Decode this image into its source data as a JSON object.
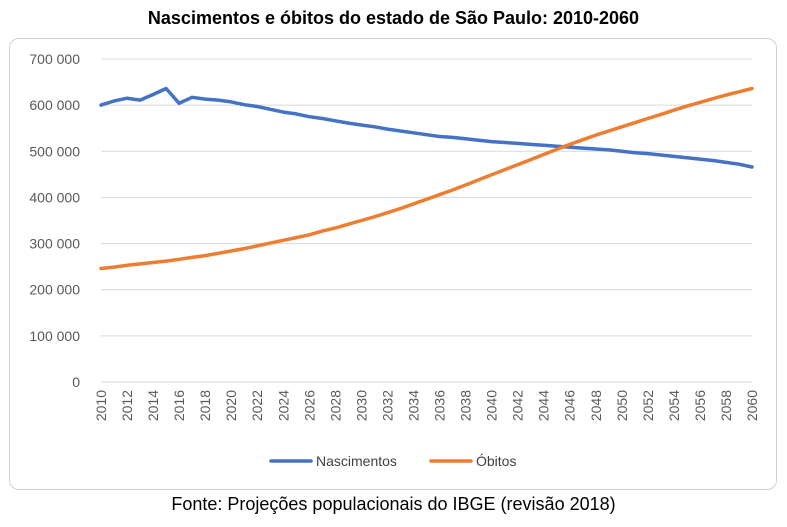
{
  "chart_data": {
    "type": "line",
    "title": "Nascimentos e óbitos do estado de São Paulo: 2010-2060",
    "source_note": "Fonte: Projeções populacionais do IBGE (revisão 2018)",
    "xlabel": "",
    "ylabel": "",
    "ylim": [
      0,
      700000
    ],
    "yticks": [
      0,
      100000,
      200000,
      300000,
      400000,
      500000,
      600000,
      700000
    ],
    "ytick_labels": [
      "0",
      "100 000",
      "200 000",
      "300 000",
      "400 000",
      "500 000",
      "600 000",
      "700 000"
    ],
    "xlim": [
      2010,
      2060
    ],
    "xticks": [
      2010,
      2012,
      2014,
      2016,
      2018,
      2020,
      2022,
      2024,
      2026,
      2028,
      2030,
      2032,
      2034,
      2036,
      2038,
      2040,
      2042,
      2044,
      2046,
      2048,
      2050,
      2052,
      2054,
      2056,
      2058,
      2060
    ],
    "grid": true,
    "legend_position": "bottom",
    "x": [
      2010,
      2011,
      2012,
      2013,
      2014,
      2015,
      2016,
      2017,
      2018,
      2019,
      2020,
      2021,
      2022,
      2023,
      2024,
      2025,
      2026,
      2027,
      2028,
      2029,
      2030,
      2031,
      2032,
      2033,
      2034,
      2035,
      2036,
      2037,
      2038,
      2039,
      2040,
      2041,
      2042,
      2043,
      2044,
      2045,
      2046,
      2047,
      2048,
      2049,
      2050,
      2051,
      2052,
      2053,
      2054,
      2055,
      2056,
      2057,
      2058,
      2059,
      2060
    ],
    "series": [
      {
        "name": "Nascimentos",
        "color": "#4472C4",
        "values": [
          600000,
          609000,
          615000,
          611000,
          623000,
          636000,
          604000,
          617000,
          613000,
          611000,
          607000,
          601000,
          597000,
          591000,
          585000,
          581000,
          575000,
          571000,
          566000,
          561000,
          557000,
          553000,
          548000,
          544000,
          540000,
          536000,
          532000,
          530000,
          527000,
          524000,
          521000,
          519000,
          517000,
          515000,
          513000,
          511000,
          509000,
          507000,
          505000,
          503000,
          500000,
          497000,
          495000,
          492000,
          489000,
          486000,
          483000,
          480000,
          476000,
          472000,
          466000
        ]
      },
      {
        "name": "Óbitos",
        "color": "#ED7D31",
        "values": [
          246000,
          249000,
          253000,
          256000,
          259000,
          262000,
          266000,
          270000,
          274000,
          279000,
          284000,
          289000,
          295000,
          301000,
          307000,
          313000,
          319000,
          327000,
          334000,
          342000,
          350000,
          358000,
          367000,
          376000,
          386000,
          396000,
          406000,
          416000,
          427000,
          438000,
          449000,
          460000,
          471000,
          482000,
          493000,
          504000,
          515000,
          525000,
          535000,
          544000,
          553000,
          562000,
          571000,
          580000,
          589000,
          598000,
          606000,
          614000,
          622000,
          629000,
          636000
        ]
      }
    ]
  }
}
